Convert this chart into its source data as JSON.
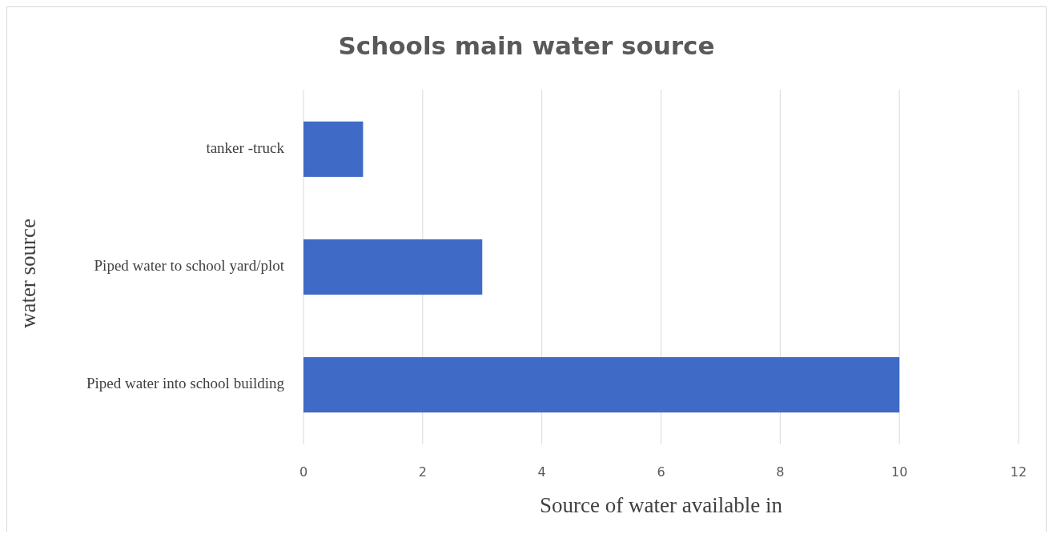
{
  "chart_data": {
    "type": "bar",
    "orientation": "horizontal",
    "title": "Schools main water source",
    "xlabel": "Source of water available in",
    "ylabel": "water source",
    "categories": [
      "tanker -truck",
      "Piped water to school yard/plot",
      "Piped water into school building"
    ],
    "values": [
      1,
      3,
      10
    ],
    "color": "#3f6bc6",
    "xlim": [
      0,
      12
    ],
    "xticks": [
      0,
      2,
      4,
      6,
      8,
      10,
      12
    ],
    "grid": "x"
  }
}
